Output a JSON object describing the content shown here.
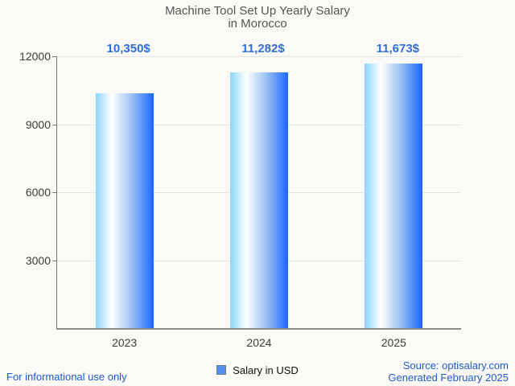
{
  "title": {
    "line1": "Machine Tool Set Up Yearly Salary",
    "line2": "in Morocco"
  },
  "chart_data": {
    "type": "bar",
    "title": "Machine Tool Set Up Yearly Salary in Morocco",
    "categories": [
      "2023",
      "2024",
      "2025"
    ],
    "values": [
      10350,
      11282,
      11673
    ],
    "value_labels": [
      "10,350$",
      "11,282$",
      "11,673$"
    ],
    "series": [
      {
        "name": "Salary in USD",
        "values": [
          10350,
          11282,
          11673
        ]
      }
    ],
    "xlabel": "",
    "ylabel": "",
    "ylim": [
      0,
      12000
    ],
    "yticks": [
      3000,
      6000,
      9000,
      12000
    ],
    "grid": true,
    "legend_position": "bottom"
  },
  "legend": {
    "label": "Salary in USD"
  },
  "footer": {
    "left": "For informational use only",
    "source": "Source: optisalary.com",
    "generated": "Generated February 2025"
  },
  "colors": {
    "background": "#fbfaf6",
    "title_text": "#555555",
    "axis_text": "#3d3d3d",
    "axis_line": "#7a7a7a",
    "gridline": "#e3e3e3",
    "value_label_text": "#2e6fdd",
    "footer_text": "#1d5bd8",
    "legend_swatch": "#4f90f0",
    "bar_gradient_left": "#8cd6fa",
    "bar_gradient_mid": "#ffffff",
    "bar_gradient_right": "#1a66fc"
  }
}
